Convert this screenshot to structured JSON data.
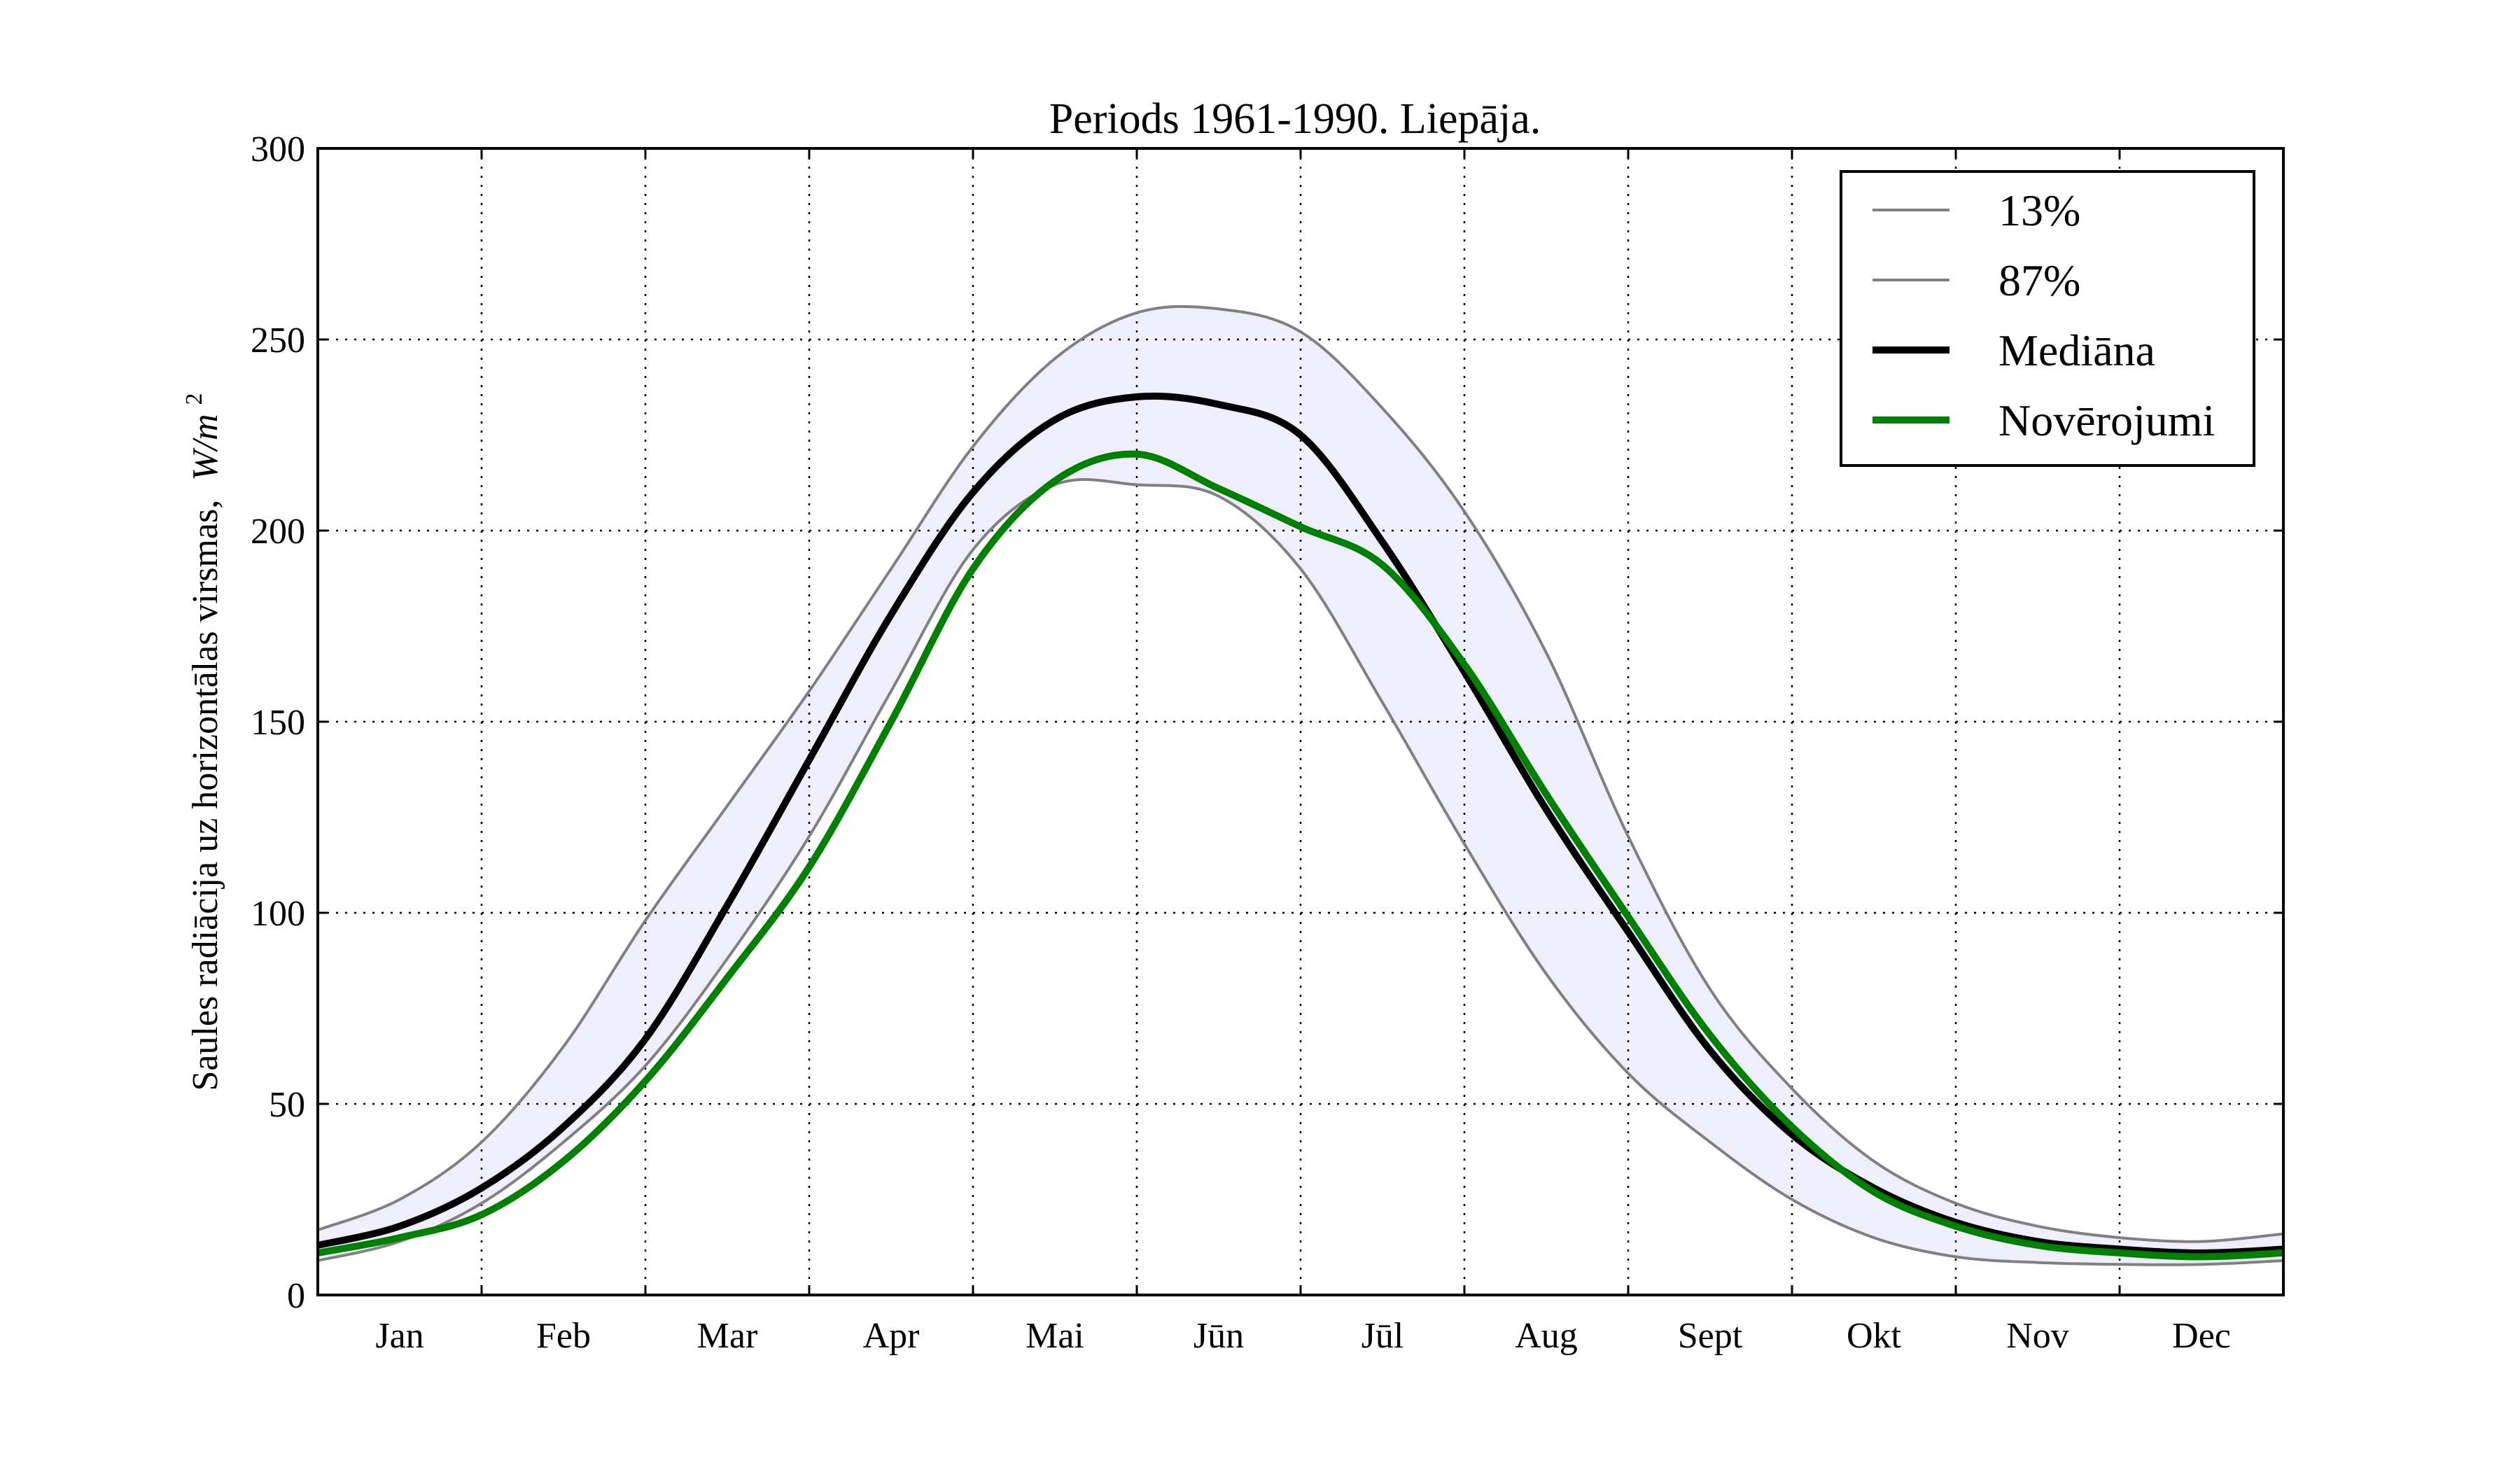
{
  "chart_data": {
    "type": "line",
    "title": "Periods 1961-1990. Liepāja.",
    "xlabel": "",
    "ylabel": "Saules radiācija uz horizontālas virsmas,",
    "ylabel_unit": "W/m",
    "ylabel_unit_exp": "2",
    "ylim": [
      0,
      300
    ],
    "yticks": [
      0,
      50,
      100,
      150,
      200,
      250,
      300
    ],
    "x_range": [
      0.5,
      12.5
    ],
    "month_boundaries": [
      1.5,
      2.5,
      3.5,
      4.5,
      5.5,
      6.5,
      7.5,
      8.5,
      9.5,
      10.5,
      11.5
    ],
    "categories": [
      "Jan",
      "Feb",
      "Mar",
      "Apr",
      "Mai",
      "Jūn",
      "Jūl",
      "Aug",
      "Sept",
      "Okt",
      "Nov",
      "Dec"
    ],
    "grid": true,
    "legend_position": "top-right",
    "band_color": "#eeeefc",
    "x": [
      0.5,
      1.0,
      1.5,
      2.0,
      2.5,
      3.0,
      3.5,
      4.0,
      4.5,
      5.0,
      5.5,
      6.0,
      6.5,
      7.0,
      7.5,
      8.0,
      8.5,
      9.0,
      9.5,
      10.0,
      10.5,
      11.0,
      11.5,
      12.0,
      12.5
    ],
    "series": [
      {
        "name": "13%",
        "color": "#808080",
        "width": 4,
        "values": [
          9,
          14,
          24,
          40,
          60,
          88,
          120,
          158,
          195,
          212,
          212,
          209,
          190,
          155,
          118,
          84,
          58,
          40,
          25,
          15,
          10,
          8.5,
          8,
          8,
          9
        ]
      },
      {
        "name": "87%",
        "color": "#808080",
        "width": 4,
        "values": [
          17,
          25,
          40,
          65,
          98,
          128,
          158,
          190,
          222,
          245,
          257,
          258,
          252,
          232,
          205,
          168,
          120,
          80,
          54,
          35,
          24,
          18,
          15,
          14,
          16
        ]
      },
      {
        "name": "Mediāna",
        "color": "#000000",
        "width": 10,
        "values": [
          13,
          18,
          28,
          44,
          67,
          102,
          140,
          178,
          210,
          229,
          235,
          233,
          225,
          197,
          163,
          127,
          95,
          64,
          42,
          28,
          19,
          14,
          12,
          11,
          12
        ]
      },
      {
        "name": "Novērojumi",
        "color": "#008000",
        "width": 10,
        "values": [
          11,
          15,
          21,
          35,
          56,
          83,
          112,
          150,
          190,
          213,
          220,
          211,
          201,
          191,
          165,
          131,
          99,
          68,
          44,
          27,
          18,
          13,
          11,
          10,
          11
        ]
      }
    ]
  }
}
